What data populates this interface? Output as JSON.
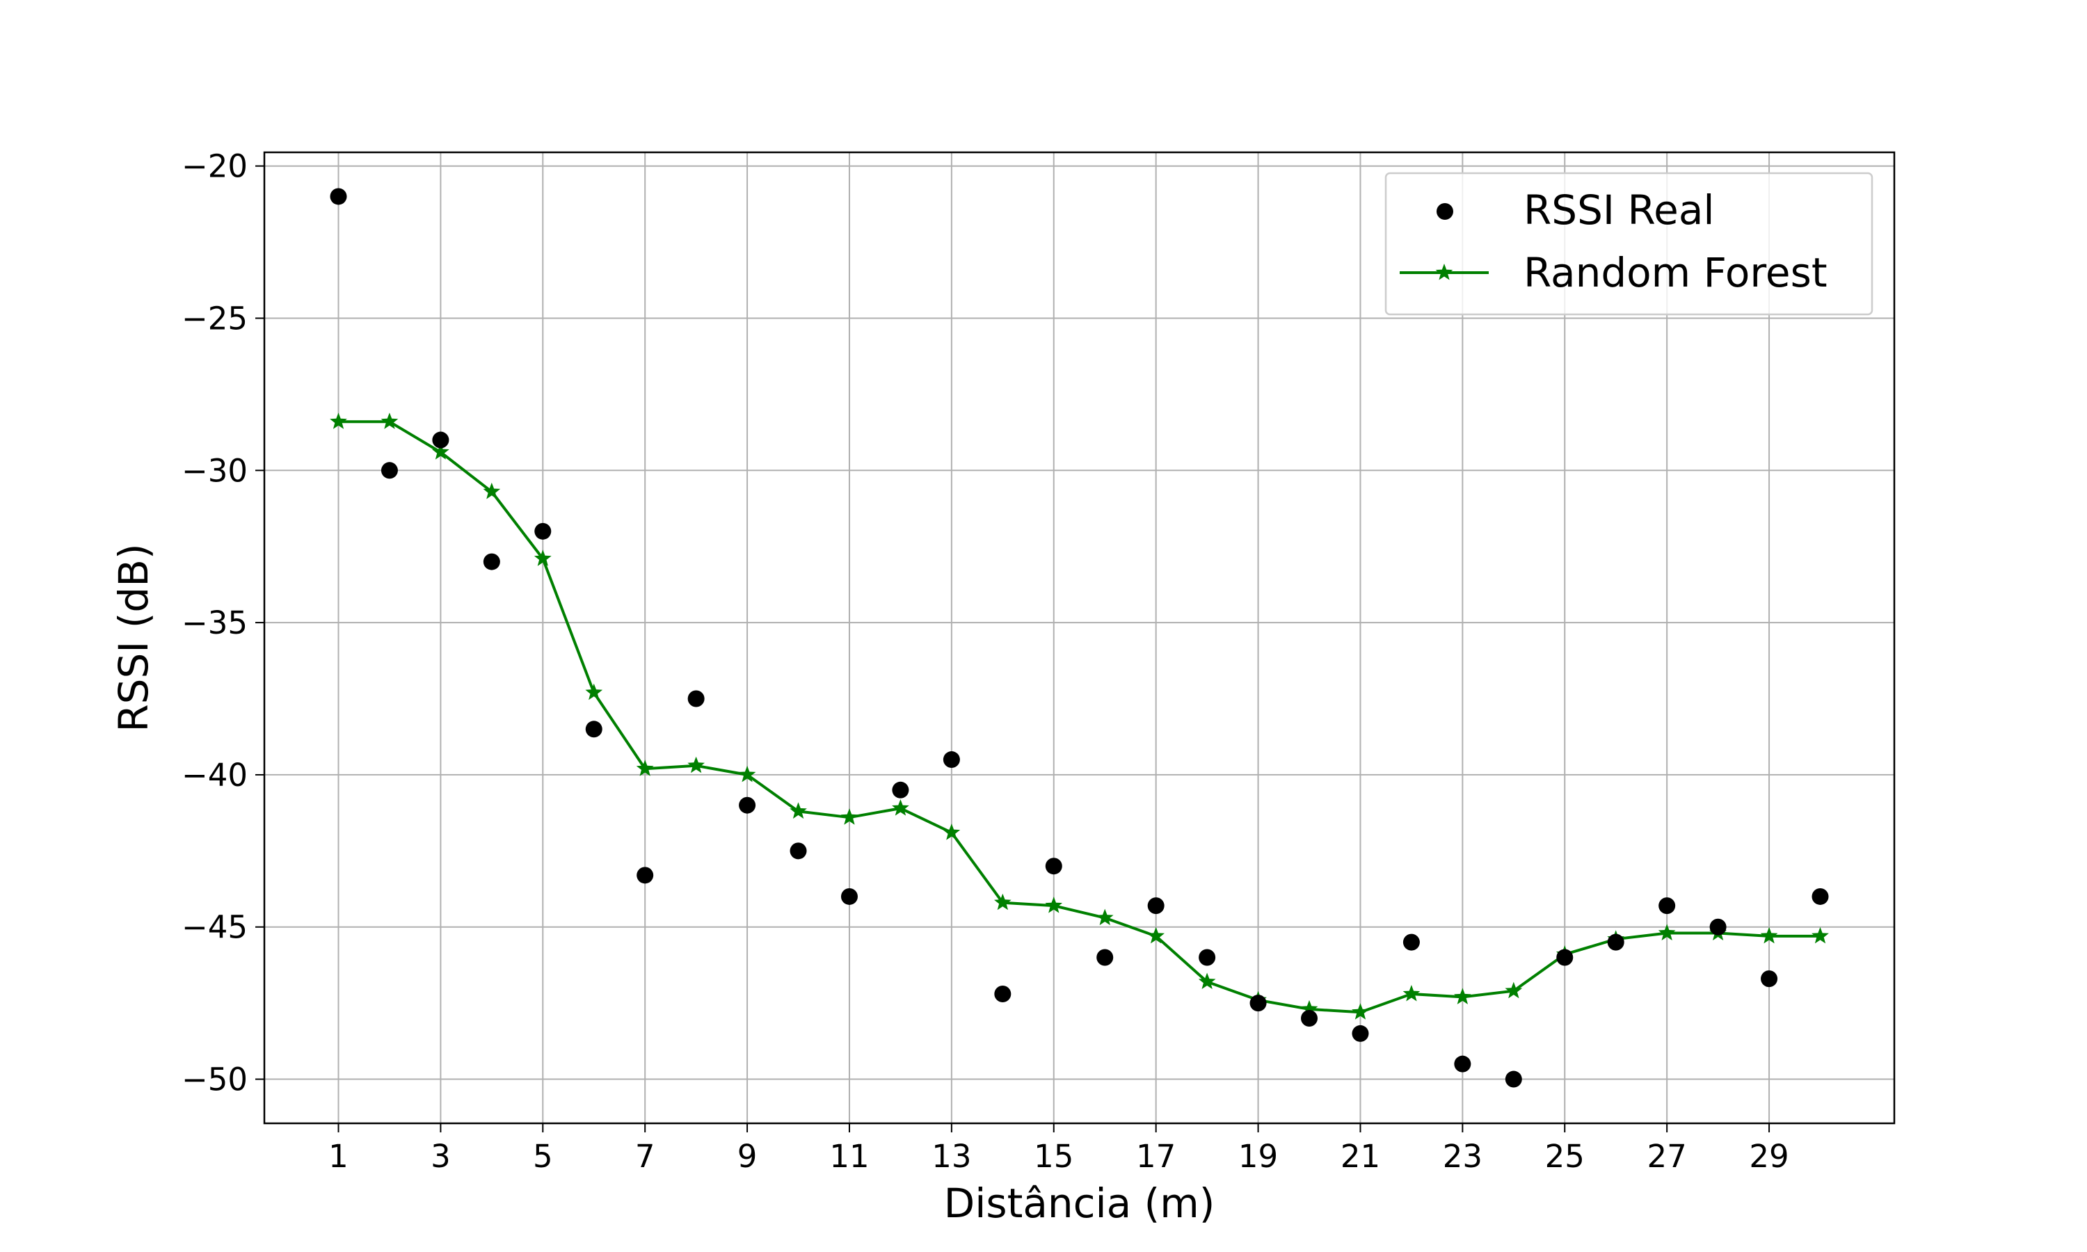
{
  "chart_data": {
    "type": "scatter",
    "title": "",
    "xlabel": "Distância (m)",
    "ylabel": "RSSI (dB)",
    "xlim": [
      -0.45,
      31.45
    ],
    "ylim": [
      -51.45,
      -19.55
    ],
    "xticks": [
      1,
      3,
      5,
      7,
      9,
      11,
      13,
      15,
      17,
      19,
      21,
      23,
      25,
      27,
      29
    ],
    "xtick_labels": [
      "1",
      "3",
      "5",
      "7",
      "9",
      "11",
      "13",
      "15",
      "17",
      "19",
      "21",
      "23",
      "25",
      "27",
      "29"
    ],
    "yticks": [
      -20,
      -25,
      -30,
      -35,
      -40,
      -45,
      -50
    ],
    "ytick_labels": [
      "−20",
      "−25",
      "−30",
      "−35",
      "−40",
      "−45",
      "−50"
    ],
    "grid": true,
    "legend_position": "upper right",
    "series": [
      {
        "name": "RSSI Real",
        "kind": "scatter",
        "marker": "circle",
        "color": "#000000",
        "x": [
          1,
          2,
          3,
          4,
          5,
          6,
          7,
          8,
          9,
          10,
          11,
          12,
          13,
          14,
          15,
          16,
          17,
          18,
          19,
          20,
          21,
          22,
          23,
          24,
          25,
          26,
          27,
          28,
          29,
          30
        ],
        "y": [
          -21.0,
          -30.0,
          -29.0,
          -33.0,
          -32.0,
          -38.5,
          -43.3,
          -37.5,
          -41.0,
          -42.5,
          -44.0,
          -40.5,
          -39.5,
          -47.2,
          -43.0,
          -46.0,
          -44.3,
          -46.0,
          -47.5,
          -48.0,
          -48.5,
          -45.5,
          -49.5,
          -50.0,
          -46.0,
          -45.5,
          -44.3,
          -45.0,
          -46.7,
          -44.0
        ]
      },
      {
        "name": "Random Forest",
        "kind": "line",
        "marker": "star",
        "color": "#008000",
        "x": [
          1,
          2,
          3,
          4,
          5,
          6,
          7,
          8,
          9,
          10,
          11,
          12,
          13,
          14,
          15,
          16,
          17,
          18,
          19,
          20,
          21,
          22,
          23,
          24,
          25,
          26,
          27,
          28,
          29,
          30
        ],
        "y": [
          -28.4,
          -28.4,
          -29.4,
          -30.7,
          -32.9,
          -37.3,
          -39.8,
          -39.7,
          -40.0,
          -41.2,
          -41.4,
          -41.1,
          -41.9,
          -44.2,
          -44.3,
          -44.7,
          -45.3,
          -46.8,
          -47.4,
          -47.7,
          -47.8,
          -47.2,
          -47.3,
          -47.1,
          -45.9,
          -45.4,
          -45.2,
          -45.2,
          -45.3,
          -45.3
        ]
      }
    ]
  }
}
